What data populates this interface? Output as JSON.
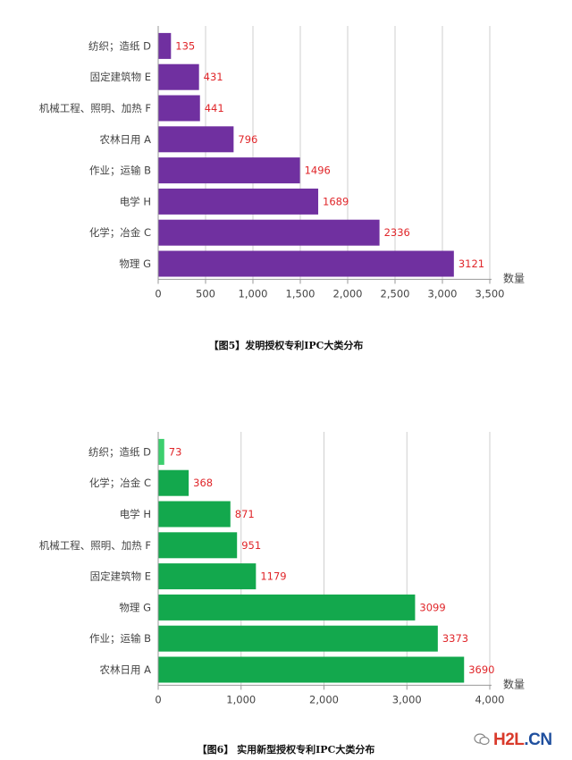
{
  "chart_data": [
    {
      "type": "bar",
      "orientation": "horizontal",
      "categories": [
        "纺织；造纸 D",
        "固定建筑物 E",
        "机械工程、照明、加热 F",
        "农林日用 A",
        "作业；运输 B",
        "电学 H",
        "化学；冶金 C",
        "物理 G"
      ],
      "values": [
        135,
        431,
        441,
        796,
        1496,
        1689,
        2336,
        3121
      ],
      "xlim": [
        0,
        3500
      ],
      "xticks": [
        "0",
        "500",
        "1,000",
        "1,500",
        "2,000",
        "2,500",
        "3,000",
        "3,500"
      ],
      "tick_values": [
        0,
        500,
        1000,
        1500,
        2000,
        2500,
        3000,
        3500
      ],
      "xlabel": "数量",
      "bar_color": "#7030a0",
      "label_color": "#e0262a",
      "grid": true
    },
    {
      "type": "bar",
      "orientation": "horizontal",
      "categories": [
        "纺织；造纸 D",
        "化学；冶金 C",
        "电学 H",
        "机械工程、照明、加热 F",
        "固定建筑物 E",
        "物理 G",
        "作业；运输 B",
        "农林日用 A"
      ],
      "values": [
        73,
        368,
        871,
        951,
        1179,
        3099,
        3373,
        3690
      ],
      "xlim": [
        0,
        4000
      ],
      "xticks": [
        "0",
        "1,000",
        "2,000",
        "3,000",
        "4,000"
      ],
      "tick_values": [
        0,
        1000,
        2000,
        3000,
        4000
      ],
      "xlabel": "数量",
      "bar_color": "#13a84d",
      "first_bar_color": "#3ccf6e",
      "label_color": "#e0262a",
      "grid": true
    }
  ],
  "captions": {
    "fig5": "【图5】发明授权专利IPC大类分布",
    "fig6": "【图6】 实用新型授权专利IPC大类分布"
  },
  "watermark": {
    "brand": "H2L",
    "suffix": ".CN"
  }
}
